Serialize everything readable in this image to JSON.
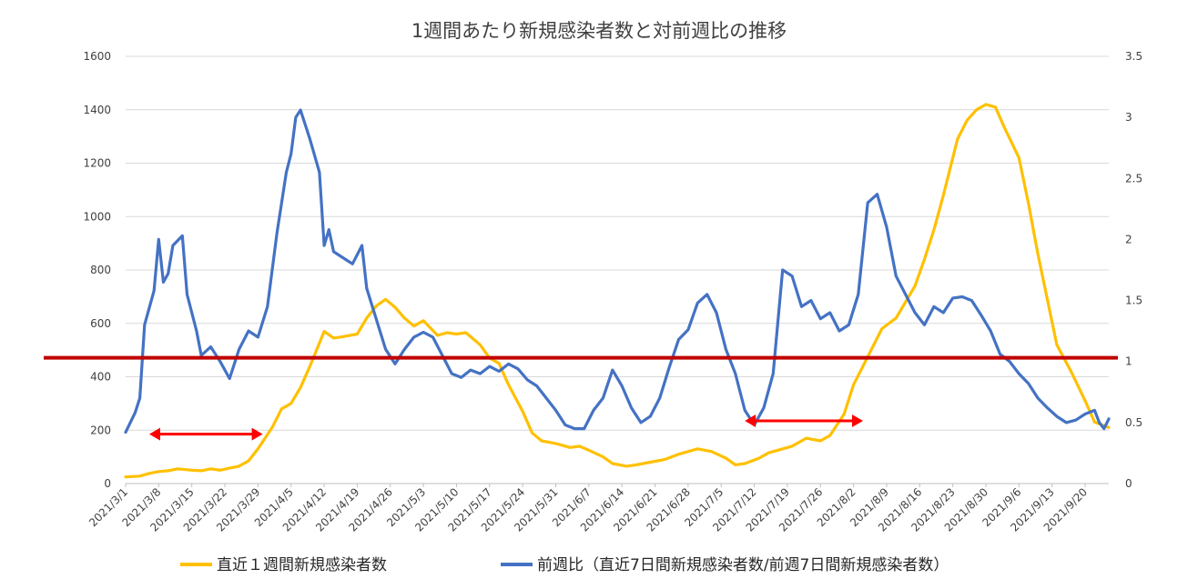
{
  "chart_data": {
    "type": "line",
    "title": "1週間あたり新規感染者数と対前週比の推移",
    "x_tick_labels": [
      "2021/3/1",
      "2021/3/8",
      "2021/3/15",
      "2021/3/22",
      "2021/3/29",
      "2021/4/5",
      "2021/4/12",
      "2021/4/19",
      "2021/4/26",
      "2021/5/3",
      "2021/5/10",
      "2021/5/17",
      "2021/5/24",
      "2021/5/31",
      "2021/6/7",
      "2021/6/14",
      "2021/6/21",
      "2021/6/28",
      "2021/7/5",
      "2021/7/12",
      "2021/7/19",
      "2021/7/26",
      "2021/8/2",
      "2021/8/9",
      "2021/8/16",
      "2021/8/23",
      "2021/8/30",
      "2021/9/6",
      "2021/9/13",
      "2021/9/20"
    ],
    "x_range": [
      "2021-03-01",
      "2021-09-25"
    ],
    "y_left": {
      "range": [
        0,
        1600
      ],
      "ticks": [
        "0",
        "200",
        "400",
        "600",
        "800",
        "1000",
        "1200",
        "1400",
        "1600"
      ]
    },
    "y_right": {
      "range": [
        0,
        3.5
      ],
      "ticks": [
        "0",
        "0.5",
        "1",
        "1.5",
        "2",
        "2.5",
        "3",
        "3.5"
      ]
    },
    "grid": true,
    "legend_position": "bottom",
    "series": [
      {
        "name": "直近１週間新規感染者数",
        "axis": "left",
        "color": "#FFC000",
        "points": [
          [
            "2021-03-01",
            25
          ],
          [
            "2021-03-04",
            28
          ],
          [
            "2021-03-06",
            38
          ],
          [
            "2021-03-08",
            45
          ],
          [
            "2021-03-10",
            48
          ],
          [
            "2021-03-12",
            55
          ],
          [
            "2021-03-15",
            50
          ],
          [
            "2021-03-17",
            48
          ],
          [
            "2021-03-19",
            55
          ],
          [
            "2021-03-21",
            50
          ],
          [
            "2021-03-23",
            58
          ],
          [
            "2021-03-25",
            65
          ],
          [
            "2021-03-27",
            85
          ],
          [
            "2021-03-29",
            130
          ],
          [
            "2021-04-01",
            210
          ],
          [
            "2021-04-03",
            280
          ],
          [
            "2021-04-05",
            300
          ],
          [
            "2021-04-07",
            360
          ],
          [
            "2021-04-09",
            440
          ],
          [
            "2021-04-12",
            570
          ],
          [
            "2021-04-14",
            545
          ],
          [
            "2021-04-16",
            550
          ],
          [
            "2021-04-19",
            560
          ],
          [
            "2021-04-21",
            620
          ],
          [
            "2021-04-23",
            665
          ],
          [
            "2021-04-25",
            690
          ],
          [
            "2021-04-27",
            660
          ],
          [
            "2021-04-29",
            620
          ],
          [
            "2021-05-01",
            590
          ],
          [
            "2021-05-03",
            610
          ],
          [
            "2021-05-06",
            555
          ],
          [
            "2021-05-08",
            565
          ],
          [
            "2021-05-10",
            560
          ],
          [
            "2021-05-12",
            565
          ],
          [
            "2021-05-15",
            520
          ],
          [
            "2021-05-17",
            470
          ],
          [
            "2021-05-19",
            450
          ],
          [
            "2021-05-21",
            370
          ],
          [
            "2021-05-24",
            270
          ],
          [
            "2021-05-26",
            190
          ],
          [
            "2021-05-28",
            160
          ],
          [
            "2021-05-31",
            150
          ],
          [
            "2021-06-03",
            135
          ],
          [
            "2021-06-05",
            140
          ],
          [
            "2021-06-07",
            125
          ],
          [
            "2021-06-10",
            100
          ],
          [
            "2021-06-12",
            75
          ],
          [
            "2021-06-15",
            65
          ],
          [
            "2021-06-17",
            70
          ],
          [
            "2021-06-20",
            80
          ],
          [
            "2021-06-23",
            90
          ],
          [
            "2021-06-26",
            110
          ],
          [
            "2021-06-28",
            120
          ],
          [
            "2021-06-30",
            130
          ],
          [
            "2021-07-03",
            120
          ],
          [
            "2021-07-06",
            95
          ],
          [
            "2021-07-08",
            70
          ],
          [
            "2021-07-10",
            75
          ],
          [
            "2021-07-13",
            95
          ],
          [
            "2021-07-15",
            115
          ],
          [
            "2021-07-17",
            125
          ],
          [
            "2021-07-20",
            140
          ],
          [
            "2021-07-23",
            170
          ],
          [
            "2021-07-26",
            160
          ],
          [
            "2021-07-28",
            180
          ],
          [
            "2021-07-31",
            260
          ],
          [
            "2021-08-02",
            370
          ],
          [
            "2021-08-04",
            440
          ],
          [
            "2021-08-06",
            510
          ],
          [
            "2021-08-08",
            580
          ],
          [
            "2021-08-11",
            620
          ],
          [
            "2021-08-13",
            680
          ],
          [
            "2021-08-15",
            740
          ],
          [
            "2021-08-17",
            840
          ],
          [
            "2021-08-19",
            950
          ],
          [
            "2021-08-21",
            1080
          ],
          [
            "2021-08-24",
            1290
          ],
          [
            "2021-08-26",
            1360
          ],
          [
            "2021-08-28",
            1400
          ],
          [
            "2021-08-30",
            1420
          ],
          [
            "2021-09-01",
            1410
          ],
          [
            "2021-09-03",
            1330
          ],
          [
            "2021-09-06",
            1220
          ],
          [
            "2021-09-08",
            1050
          ],
          [
            "2021-09-10",
            860
          ],
          [
            "2021-09-12",
            690
          ],
          [
            "2021-09-14",
            520
          ],
          [
            "2021-09-17",
            420
          ],
          [
            "2021-09-20",
            310
          ],
          [
            "2021-09-22",
            230
          ],
          [
            "2021-09-25",
            210
          ]
        ]
      },
      {
        "name": "前週比（直近7日間新規感染者数/前週7日間新規感染者数）",
        "axis": "right",
        "color": "#4472C4",
        "points": [
          [
            "2021-03-01",
            0.42
          ],
          [
            "2021-03-03",
            0.58
          ],
          [
            "2021-03-04",
            0.7
          ],
          [
            "2021-03-05",
            1.3
          ],
          [
            "2021-03-07",
            1.58
          ],
          [
            "2021-03-08",
            2.0
          ],
          [
            "2021-03-09",
            1.65
          ],
          [
            "2021-03-10",
            1.72
          ],
          [
            "2021-03-11",
            1.95
          ],
          [
            "2021-03-13",
            2.03
          ],
          [
            "2021-03-14",
            1.55
          ],
          [
            "2021-03-16",
            1.25
          ],
          [
            "2021-03-17",
            1.05
          ],
          [
            "2021-03-19",
            1.12
          ],
          [
            "2021-03-21",
            1.0
          ],
          [
            "2021-03-23",
            0.86
          ],
          [
            "2021-03-25",
            1.1
          ],
          [
            "2021-03-27",
            1.25
          ],
          [
            "2021-03-29",
            1.2
          ],
          [
            "2021-03-31",
            1.45
          ],
          [
            "2021-04-02",
            2.05
          ],
          [
            "2021-04-04",
            2.55
          ],
          [
            "2021-04-05",
            2.7
          ],
          [
            "2021-04-06",
            3.0
          ],
          [
            "2021-04-07",
            3.06
          ],
          [
            "2021-04-09",
            2.82
          ],
          [
            "2021-04-11",
            2.55
          ],
          [
            "2021-04-12",
            1.95
          ],
          [
            "2021-04-13",
            2.08
          ],
          [
            "2021-04-14",
            1.9
          ],
          [
            "2021-04-16",
            1.85
          ],
          [
            "2021-04-18",
            1.8
          ],
          [
            "2021-04-20",
            1.95
          ],
          [
            "2021-04-21",
            1.6
          ],
          [
            "2021-04-23",
            1.35
          ],
          [
            "2021-04-25",
            1.1
          ],
          [
            "2021-04-27",
            0.98
          ],
          [
            "2021-04-29",
            1.1
          ],
          [
            "2021-05-01",
            1.2
          ],
          [
            "2021-05-03",
            1.24
          ],
          [
            "2021-05-05",
            1.2
          ],
          [
            "2021-05-07",
            1.05
          ],
          [
            "2021-05-09",
            0.9
          ],
          [
            "2021-05-11",
            0.87
          ],
          [
            "2021-05-13",
            0.93
          ],
          [
            "2021-05-15",
            0.9
          ],
          [
            "2021-05-17",
            0.96
          ],
          [
            "2021-05-19",
            0.92
          ],
          [
            "2021-05-21",
            0.98
          ],
          [
            "2021-05-23",
            0.94
          ],
          [
            "2021-05-25",
            0.85
          ],
          [
            "2021-05-27",
            0.8
          ],
          [
            "2021-05-29",
            0.7
          ],
          [
            "2021-05-31",
            0.6
          ],
          [
            "2021-06-02",
            0.48
          ],
          [
            "2021-06-04",
            0.45
          ],
          [
            "2021-06-06",
            0.45
          ],
          [
            "2021-06-08",
            0.6
          ],
          [
            "2021-06-10",
            0.7
          ],
          [
            "2021-06-12",
            0.93
          ],
          [
            "2021-06-14",
            0.8
          ],
          [
            "2021-06-16",
            0.62
          ],
          [
            "2021-06-18",
            0.5
          ],
          [
            "2021-06-20",
            0.55
          ],
          [
            "2021-06-22",
            0.7
          ],
          [
            "2021-06-24",
            0.95
          ],
          [
            "2021-06-26",
            1.18
          ],
          [
            "2021-06-28",
            1.26
          ],
          [
            "2021-06-30",
            1.48
          ],
          [
            "2021-07-02",
            1.55
          ],
          [
            "2021-07-04",
            1.4
          ],
          [
            "2021-07-06",
            1.1
          ],
          [
            "2021-07-08",
            0.9
          ],
          [
            "2021-07-10",
            0.6
          ],
          [
            "2021-07-12",
            0.48
          ],
          [
            "2021-07-14",
            0.62
          ],
          [
            "2021-07-16",
            0.9
          ],
          [
            "2021-07-18",
            1.75
          ],
          [
            "2021-07-20",
            1.7
          ],
          [
            "2021-07-22",
            1.45
          ],
          [
            "2021-07-24",
            1.5
          ],
          [
            "2021-07-26",
            1.35
          ],
          [
            "2021-07-28",
            1.4
          ],
          [
            "2021-07-30",
            1.25
          ],
          [
            "2021-08-01",
            1.3
          ],
          [
            "2021-08-03",
            1.55
          ],
          [
            "2021-08-05",
            2.3
          ],
          [
            "2021-08-07",
            2.37
          ],
          [
            "2021-08-09",
            2.1
          ],
          [
            "2021-08-11",
            1.7
          ],
          [
            "2021-08-13",
            1.55
          ],
          [
            "2021-08-15",
            1.4
          ],
          [
            "2021-08-17",
            1.3
          ],
          [
            "2021-08-19",
            1.45
          ],
          [
            "2021-08-21",
            1.4
          ],
          [
            "2021-08-23",
            1.52
          ],
          [
            "2021-08-25",
            1.53
          ],
          [
            "2021-08-27",
            1.5
          ],
          [
            "2021-08-29",
            1.38
          ],
          [
            "2021-08-31",
            1.25
          ],
          [
            "2021-09-02",
            1.06
          ],
          [
            "2021-09-04",
            1.0
          ],
          [
            "2021-09-06",
            0.9
          ],
          [
            "2021-09-08",
            0.82
          ],
          [
            "2021-09-10",
            0.7
          ],
          [
            "2021-09-12",
            0.62
          ],
          [
            "2021-09-14",
            0.55
          ],
          [
            "2021-09-16",
            0.5
          ],
          [
            "2021-09-18",
            0.52
          ],
          [
            "2021-09-20",
            0.57
          ],
          [
            "2021-09-22",
            0.6
          ],
          [
            "2021-09-23",
            0.5
          ],
          [
            "2021-09-24",
            0.45
          ],
          [
            "2021-09-25",
            0.53
          ]
        ]
      }
    ],
    "annotations": {
      "reference_line": {
        "axis": "right",
        "value": 1.03,
        "color": "#C00000"
      },
      "arrows": [
        {
          "from": "2021-03-06",
          "to": "2021-03-30",
          "value_left": 185,
          "color": "#FF0000"
        },
        {
          "from": "2021-07-10",
          "to": "2021-08-04",
          "value_left": 235,
          "color": "#FF0000"
        }
      ]
    }
  }
}
